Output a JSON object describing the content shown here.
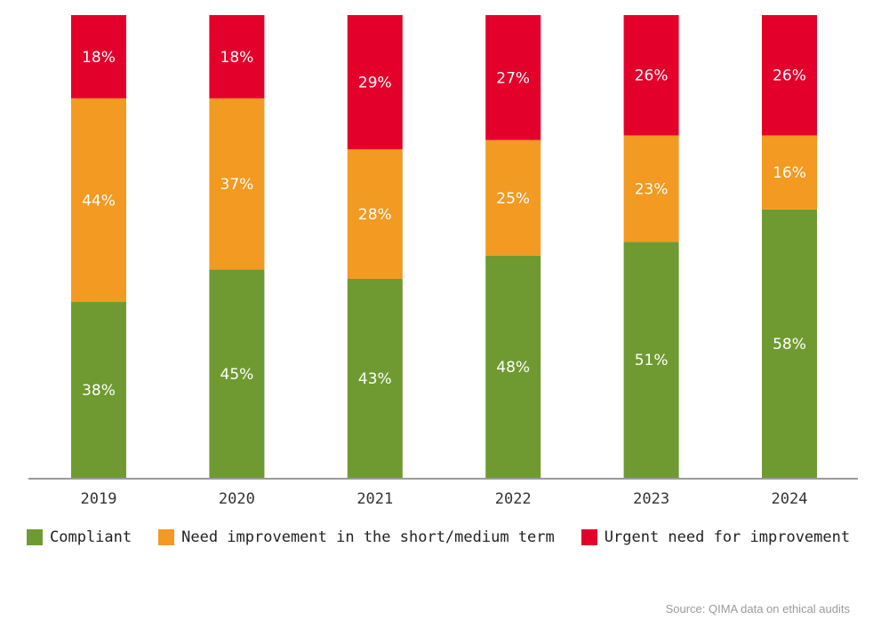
{
  "chart_data": {
    "type": "bar",
    "stacked": true,
    "categories": [
      "2019",
      "2020",
      "2021",
      "2022",
      "2023",
      "2024"
    ],
    "series": [
      {
        "name": "Compliant",
        "color": "#6f9a31",
        "values": [
          38,
          45,
          43,
          48,
          51,
          58
        ]
      },
      {
        "name": "Need improvement in the short/medium term",
        "color": "#f29a21",
        "values": [
          44,
          37,
          28,
          25,
          23,
          16
        ]
      },
      {
        "name": "Urgent need for improvement",
        "color": "#e3002b",
        "values": [
          18,
          18,
          29,
          27,
          26,
          26
        ]
      }
    ],
    "ylim": [
      0,
      100
    ],
    "value_suffix": "%",
    "legend_position": "bottom-left",
    "grid": false
  },
  "source": "Source: QIMA data on ethical audits"
}
